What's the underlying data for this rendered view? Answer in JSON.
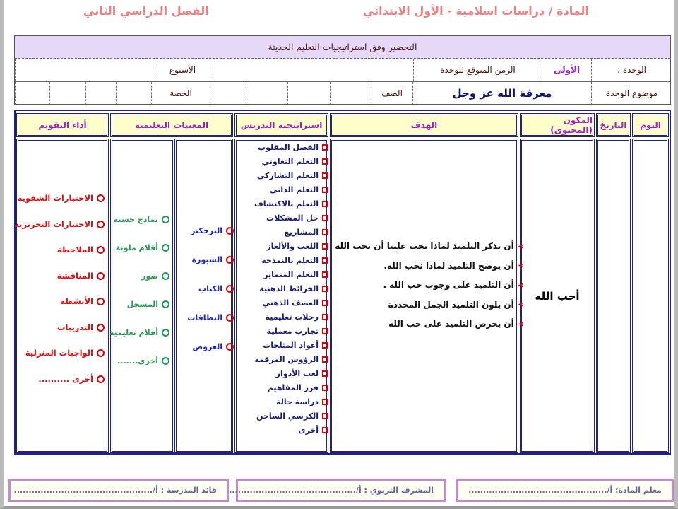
{
  "header": {
    "subject": "المادة / دراسات اسلامية - الأول الابتدائي",
    "semester": "الفصل الدراسي الثاني"
  },
  "info": {
    "title": "التحضير وفق استراتيجيات التعليم الحديثة",
    "unit_label": "الوحدة :",
    "unit_value": "الأولى",
    "time_label": "الزمن المتوقع للوحدة",
    "week_label": "الأسبوع",
    "topic_label": "موضوع الوحدة",
    "topic_value": "معرفة الله عز وجل",
    "class_label": "الصف",
    "period_label": "الحصة"
  },
  "table": {
    "headers": {
      "day": "اليوم",
      "date": "التاريخ",
      "content": "المكون (المحتوى)",
      "goal": "الهدف",
      "strategy": "استراتيجية التدريس",
      "aids": "المعينات التعليمية",
      "assessment": "أداء التقويم"
    },
    "content": "أحب الله",
    "goals": [
      "أن يذكر التلميذ لماذا يجب علينا أن نحب الله",
      "أن يوضح التلميذ لماذا نحب الله.",
      "أن التلميذ على وجوب حب الله .",
      "أن يلون التلميذ الجمل المحددة",
      "أن يحرص التلميذ على حب الله"
    ],
    "strategies": [
      "الفصل المقلوب",
      "التعلم التعاوني",
      "التعلم التشاركي",
      "التعلم الذاتي",
      "التعلم بالاكتشاف",
      "حل المشكلات",
      "المشاريع",
      "اللعب والألغاز",
      "التعلم بالنمذجة",
      "التعلم المتمايز",
      "الخرائط الذهنية",
      "العصف الذهني",
      "رحلات تعليمية",
      "تجارب معملية",
      "أعواد المثلجات",
      "الرؤوس المرقمة",
      "لعب الأدوار",
      "فرز المفاهيم",
      "دراسة حالة",
      "الكرسي الساخن",
      "أخرى"
    ],
    "aids_right": [
      "البرجكتر",
      "السبورة",
      "الكتاب",
      "البطاقات",
      "العروض"
    ],
    "aids_left": [
      "نماذج حسية",
      "أقلام ملونة",
      "صور",
      "المسجل",
      "أفلام تعليمية",
      "أخرى......."
    ],
    "assessment": [
      "الاختبارات الشفوية",
      "الاختبارات التحريرية",
      "الملاحظة",
      "المناقشة",
      "الأنشطة",
      "التدريبات",
      "الواجبات المنزلية",
      "أخرى .........."
    ]
  },
  "footer": {
    "teacher": "معلم المادة: أ/...............................................",
    "supervisor": "المشرف التربوي : أ/...............................................",
    "principal": "قائد المدرسة : أ/..............................................."
  },
  "colors": {
    "header_text": "#ef7f80",
    "border": "#1f1f8f",
    "table_head_bg": "#ffffcc",
    "title_bg": "#e6d8f8"
  }
}
